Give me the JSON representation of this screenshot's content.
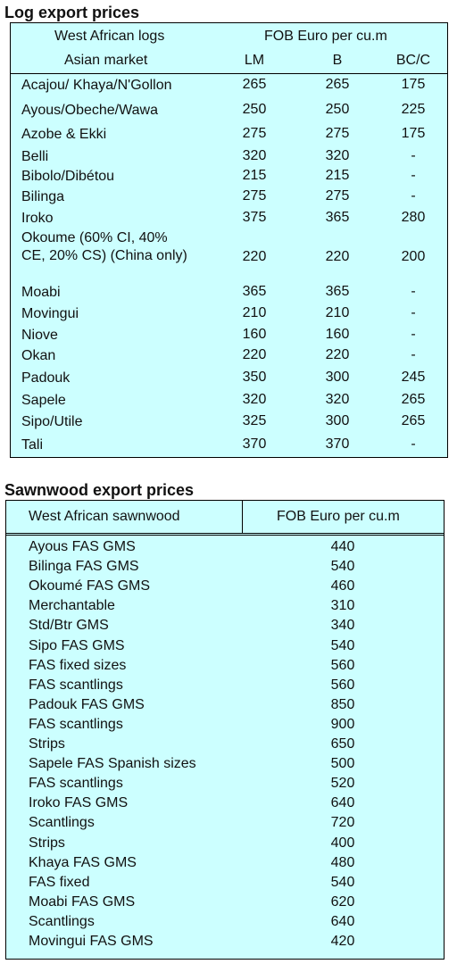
{
  "log_section": {
    "title": "Log export prices",
    "header": {
      "col1_line1": "West African logs",
      "col1_line2": "Asian market",
      "group_label": "FOB Euro per cu.m",
      "lm": "LM",
      "b": "B",
      "bc": "BC/C"
    },
    "rows": [
      {
        "name": "Acajou/ Khaya/N'Gollon",
        "lm": "265",
        "b": "265",
        "bc": "175"
      },
      {
        "name": "Ayous/Obeche/Wawa",
        "lm": "250",
        "b": "250",
        "bc": "225"
      },
      {
        "name": "Azobe & Ekki",
        "lm": "275",
        "b": "275",
        "bc": "175"
      },
      {
        "name": "Belli",
        "lm": "320",
        "b": "320",
        "bc": "-"
      },
      {
        "name": "Bibolo/Dibétou",
        "lm": "215",
        "b": "215",
        "bc": "-"
      },
      {
        "name": "Bilinga",
        "lm": "275",
        "b": "275",
        "bc": "-"
      },
      {
        "name": "Iroko",
        "lm": "375",
        "b": "365",
        "bc": "280"
      },
      {
        "name": "Okoume (60% CI, 40% CE, 20% CS) (China only)",
        "lm": "220",
        "b": "220",
        "bc": "200"
      },
      {
        "name": "Moabi",
        "lm": "365",
        "b": "365",
        "bc": "-"
      },
      {
        "name": "Movingui",
        "lm": "210",
        "b": "210",
        "bc": "-"
      },
      {
        "name": "Niove",
        "lm": "160",
        "b": "160",
        "bc": "-"
      },
      {
        "name": "Okan",
        "lm": "220",
        "b": "220",
        "bc": "-"
      },
      {
        "name": "Padouk",
        "lm": "350",
        "b": "300",
        "bc": "245"
      },
      {
        "name": "Sapele",
        "lm": "320",
        "b": "320",
        "bc": "265"
      },
      {
        "name": "Sipo/Utile",
        "lm": "325",
        "b": "300",
        "bc": "265"
      },
      {
        "name": "Tali",
        "lm": "370",
        "b": "370",
        "bc": "-"
      }
    ]
  },
  "saw_section": {
    "title": "Sawnwood export prices",
    "header": {
      "col1": "West African sawnwood",
      "col2": "FOB Euro per cu.m"
    },
    "rows": [
      {
        "name": "Ayous FAS GMS",
        "value": "440"
      },
      {
        "name": "Bilinga FAS GMS",
        "value": "540"
      },
      {
        "name": "Okoumé FAS GMS",
        "value": "460"
      },
      {
        "name": "Merchantable",
        "value": "310"
      },
      {
        "name": "Std/Btr GMS",
        "value": "340"
      },
      {
        "name": "Sipo FAS GMS",
        "value": "540"
      },
      {
        "name": "FAS fixed sizes",
        "value": "560"
      },
      {
        "name": "FAS scantlings",
        "value": "560"
      },
      {
        "name": "Padouk FAS GMS",
        "value": "850"
      },
      {
        "name": "FAS scantlings",
        "value": "900"
      },
      {
        "name": "Strips",
        "value": "650"
      },
      {
        "name": "Sapele FAS Spanish sizes",
        "value": "500"
      },
      {
        "name": "FAS scantlings",
        "value": "520"
      },
      {
        "name": "Iroko FAS GMS",
        "value": "640"
      },
      {
        "name": "Scantlings",
        "value": "720"
      },
      {
        "name": "Strips",
        "value": "400"
      },
      {
        "name": "Khaya FAS GMS",
        "value": "480"
      },
      {
        "name": "FAS fixed",
        "value": "540"
      },
      {
        "name": "Moabi FAS GMS",
        "value": "620"
      },
      {
        "name": "Scantlings",
        "value": "640"
      },
      {
        "name": "Movingui FAS GMS",
        "value": "420"
      }
    ]
  }
}
